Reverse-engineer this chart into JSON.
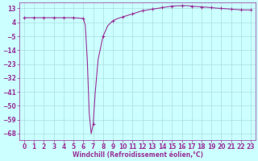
{
  "x_line": [
    0,
    1,
    2,
    3,
    4,
    5,
    6,
    6.2,
    6.4,
    6.6,
    6.8,
    7.0,
    7.2,
    7.5,
    8.0,
    8.5,
    9,
    9.5,
    10,
    10.5,
    11,
    11.5,
    12,
    12.5,
    13,
    13.5,
    14,
    14.5,
    15,
    15.5,
    16,
    16.5,
    17,
    17.5,
    18,
    18.5,
    19,
    19.5,
    20,
    20.5,
    21,
    21.5,
    22,
    22.5,
    23
  ],
  "y_line": [
    7,
    7,
    7,
    7,
    7,
    7,
    6.5,
    2,
    -20,
    -55,
    -68,
    -62,
    -42,
    -20,
    -5,
    2,
    5,
    6.5,
    7.5,
    8.5,
    9.5,
    10.5,
    11.5,
    12,
    12.5,
    13,
    13.5,
    14,
    14.5,
    14.7,
    14.8,
    14.8,
    14.5,
    14.2,
    14,
    13.8,
    13.5,
    13.2,
    13,
    12.8,
    12.5,
    12.3,
    12.1,
    12.0,
    12.0
  ],
  "x_markers": [
    0,
    1,
    2,
    3,
    4,
    5,
    6,
    7,
    8,
    9,
    10,
    11,
    12,
    13,
    14,
    15,
    16,
    17,
    18,
    19,
    20,
    21,
    22,
    23
  ],
  "y_markers": [
    7,
    7,
    7,
    7,
    7,
    7,
    6.5,
    -62,
    -5,
    5,
    7.5,
    9.5,
    11.5,
    12.5,
    13.5,
    14.5,
    14.8,
    14.5,
    14.0,
    13.5,
    13.0,
    12.5,
    12.1,
    12.0
  ],
  "xticks": [
    0,
    1,
    2,
    3,
    4,
    5,
    6,
    7,
    8,
    9,
    10,
    11,
    12,
    13,
    14,
    15,
    16,
    17,
    18,
    19,
    20,
    21,
    22,
    23
  ],
  "yticks": [
    13,
    4,
    -5,
    -14,
    -23,
    -32,
    -41,
    -50,
    -59,
    -68
  ],
  "xlim": [
    -0.5,
    23.5
  ],
  "ylim": [
    -72,
    17
  ],
  "xlabel": "Windchill (Refroidissement éolien,°C)",
  "line_color": "#993399",
  "bg_color": "#ccffff",
  "grid_color": "#aadddd",
  "tick_color": "#993399",
  "label_color": "#993399",
  "tick_labelsize": 5.5,
  "xlabel_fontsize": 5.5,
  "linewidth": 0.8,
  "markersize": 3.5,
  "markeredgewidth": 0.8
}
